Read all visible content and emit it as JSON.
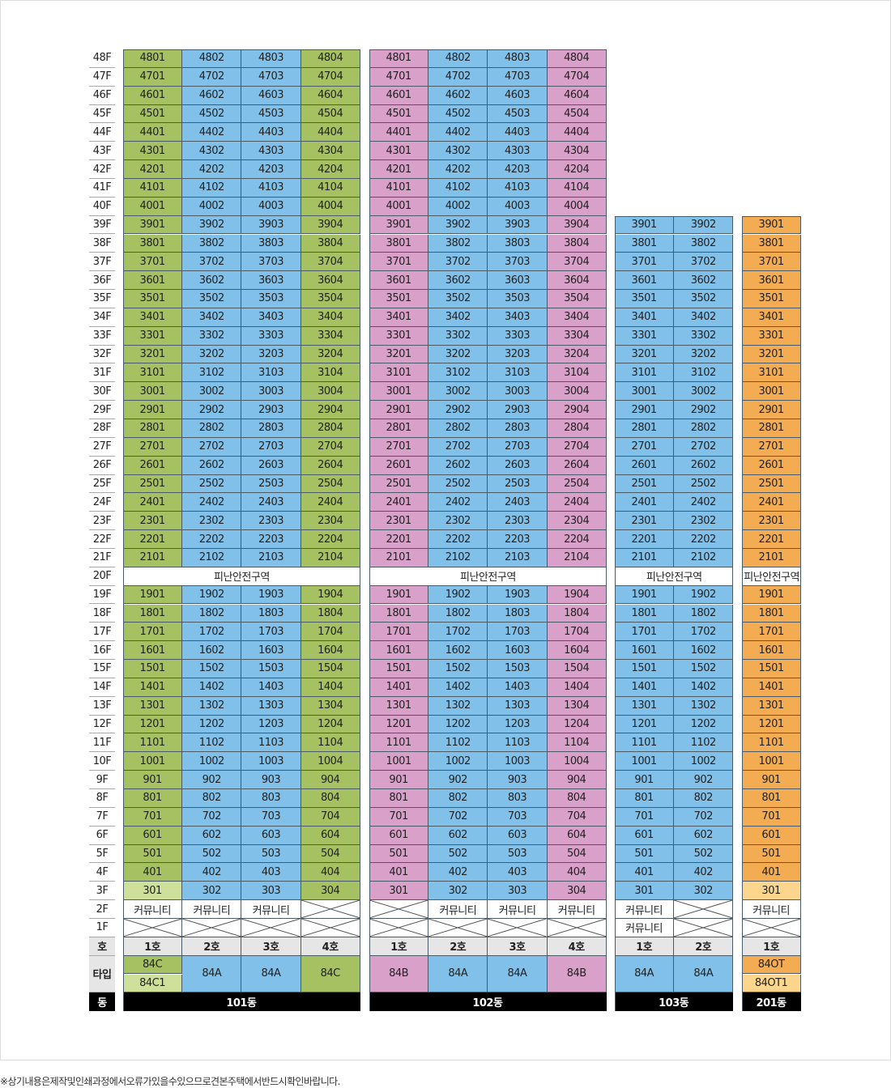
{
  "colors": {
    "green": "#a6c161",
    "lightgreen": "#cfe09a",
    "blue": "#80c0e9",
    "pink": "#d9a0c9",
    "orange": "#f4ac52",
    "lightorange": "#fbd68c",
    "header": "#e6e6e6"
  },
  "labels": {
    "unit_header": "호",
    "type_header": "타입",
    "building_header": "동",
    "community": "커뮤니티",
    "floor_suffix": "F"
  },
  "floors": {
    "top": 48,
    "bottom": 1
  },
  "buildings": [
    {
      "name": "101동",
      "top_floor": 48,
      "refuge_floor": 20,
      "refuge_label": "피난안전구역",
      "units": [
        {
          "line": "1호",
          "color": "green",
          "floor3_color": "lightgreen",
          "types": [
            {
              "label": "84C",
              "color": "green"
            },
            {
              "label": "84C1",
              "color": "lightgreen"
            }
          ]
        },
        {
          "line": "2호",
          "color": "blue",
          "types": [
            {
              "label": "84A",
              "color": "blue"
            }
          ]
        },
        {
          "line": "3호",
          "color": "blue",
          "types": [
            {
              "label": "84A",
              "color": "blue"
            }
          ]
        },
        {
          "line": "4호",
          "color": "green",
          "types": [
            {
              "label": "84C",
              "color": "green"
            }
          ]
        }
      ],
      "floor2": [
        "커뮤니티",
        "커뮤니티",
        "커뮤니티",
        null
      ],
      "floor1": [
        null,
        null,
        null,
        null
      ]
    },
    {
      "name": "102동",
      "top_floor": 48,
      "refuge_floor": 20,
      "refuge_label": "피난안전구역",
      "units": [
        {
          "line": "1호",
          "color": "pink",
          "types": [
            {
              "label": "84B",
              "color": "pink"
            }
          ]
        },
        {
          "line": "2호",
          "color": "blue",
          "types": [
            {
              "label": "84A",
              "color": "blue"
            }
          ]
        },
        {
          "line": "3호",
          "color": "blue",
          "types": [
            {
              "label": "84A",
              "color": "blue"
            }
          ]
        },
        {
          "line": "4호",
          "color": "pink",
          "types": [
            {
              "label": "84B",
              "color": "pink"
            }
          ]
        }
      ],
      "floor2": [
        null,
        "커뮤니티",
        "커뮤니티",
        "커뮤니티"
      ],
      "floor1": [
        null,
        null,
        null,
        null
      ]
    },
    {
      "name": "103동",
      "top_floor": 39,
      "refuge_floor": 20,
      "refuge_label": "피난안전구역",
      "units": [
        {
          "line": "1호",
          "color": "blue",
          "types": [
            {
              "label": "84A",
              "color": "blue"
            }
          ]
        },
        {
          "line": "2호",
          "color": "blue",
          "types": [
            {
              "label": "84A",
              "color": "blue"
            }
          ]
        }
      ],
      "floor2": [
        "커뮤니티",
        null
      ],
      "floor1": [
        "커뮤니티",
        null
      ]
    },
    {
      "name": "201동",
      "top_floor": 39,
      "refuge_floor": 20,
      "refuge_label": "피난안전구역",
      "units": [
        {
          "line": "1호",
          "color": "orange",
          "floor3_color": "lightorange",
          "types": [
            {
              "label": "84OT",
              "color": "orange"
            },
            {
              "label": "84OT1",
              "color": "lightorange"
            }
          ]
        }
      ],
      "floor2": [
        "커뮤니티"
      ],
      "floor1": [
        null
      ]
    }
  ],
  "footnote": "※상기내용은제작및인쇄과정에서오류가있을수있으므로견본주택에서반드시확인바랍니다."
}
